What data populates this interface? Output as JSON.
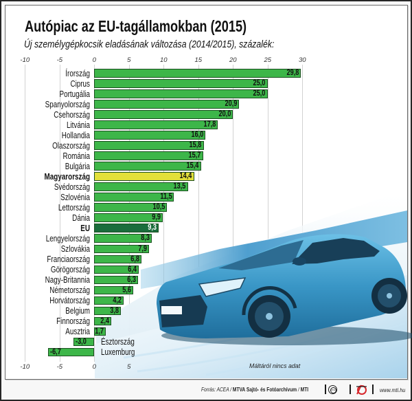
{
  "header": {
    "title": "Autópiac az EU-tagállamokban (2015)",
    "subtitle": "Új személygépkocsik eladásának változása (2014/2015), százalék:"
  },
  "chart_data": {
    "type": "bar",
    "orientation": "horizontal",
    "title": "Autópiac az EU-tagállamokban (2015)",
    "subtitle": "Új személygépkocsik eladásának változása (2014/2015), százalék:",
    "xlabel": "",
    "ylabel": "",
    "xlim": [
      -10,
      30
    ],
    "xticks": [
      -10,
      -5,
      0,
      5,
      10,
      15,
      20,
      25,
      30
    ],
    "xtick_labels": [
      "-10",
      "-5",
      "0",
      "5",
      "10",
      "15",
      "20",
      "25",
      "30"
    ],
    "bottom_xtick_labels": [
      "-10",
      "-5",
      "0",
      "5"
    ],
    "grid": true,
    "legend": "none",
    "categories": [
      "Írország",
      "Ciprus",
      "Portugália",
      "Spanyolország",
      "Csehország",
      "Litvánia",
      "Hollandia",
      "Olaszország",
      "Románia",
      "Bulgária",
      "Magyarország",
      "Svédország",
      "Szlovénia",
      "Lettország",
      "Dánia",
      "EU",
      "Lengyelország",
      "Szlovákia",
      "Franciaország",
      "Görögország",
      "Nagy-Britannia",
      "Németország",
      "Horvátország",
      "Belgium",
      "Finnország",
      "Ausztria",
      "Észtország",
      "Luxemburg"
    ],
    "values": [
      29.8,
      25.0,
      25.0,
      20.9,
      20.0,
      17.8,
      16.0,
      15.8,
      15.7,
      15.4,
      14.4,
      13.5,
      11.5,
      10.5,
      9.9,
      9.3,
      8.3,
      7.9,
      6.8,
      6.4,
      6.3,
      5.6,
      4.2,
      3.8,
      2.4,
      1.7,
      -3.0,
      -6.7
    ],
    "value_labels": [
      "29,8",
      "25,0",
      "25,0",
      "20,9",
      "20,0",
      "17,8",
      "16,0",
      "15,8",
      "15,7",
      "15,4",
      "14,4",
      "13,5",
      "11,5",
      "10,5",
      "9,9",
      "9,3",
      "8,3",
      "7,9",
      "6,8",
      "6,4",
      "6,3",
      "5,6",
      "4,2",
      "3,8",
      "2,4",
      "1,7",
      "-3,0",
      "-6,7"
    ],
    "highlights": {
      "Magyarország": "hungary",
      "EU": "eu"
    },
    "colors": {
      "bar": "#3db649",
      "bar_border": "#1b4f20",
      "hungary": "#e3e03a",
      "eu": "#1a6d3c",
      "eu_text": "#ffffff",
      "text": "#111111"
    },
    "note": "Máltáról nincs adat"
  },
  "footer": {
    "source_prefix": "Forrás: ACEA / ",
    "source_archive": "MTVA Sajtó- és Fotóarchívum",
    "source_sep": " / ",
    "source_agency": "MTI",
    "logo_mtva": "MTVA",
    "website": "www.mti.hu"
  }
}
